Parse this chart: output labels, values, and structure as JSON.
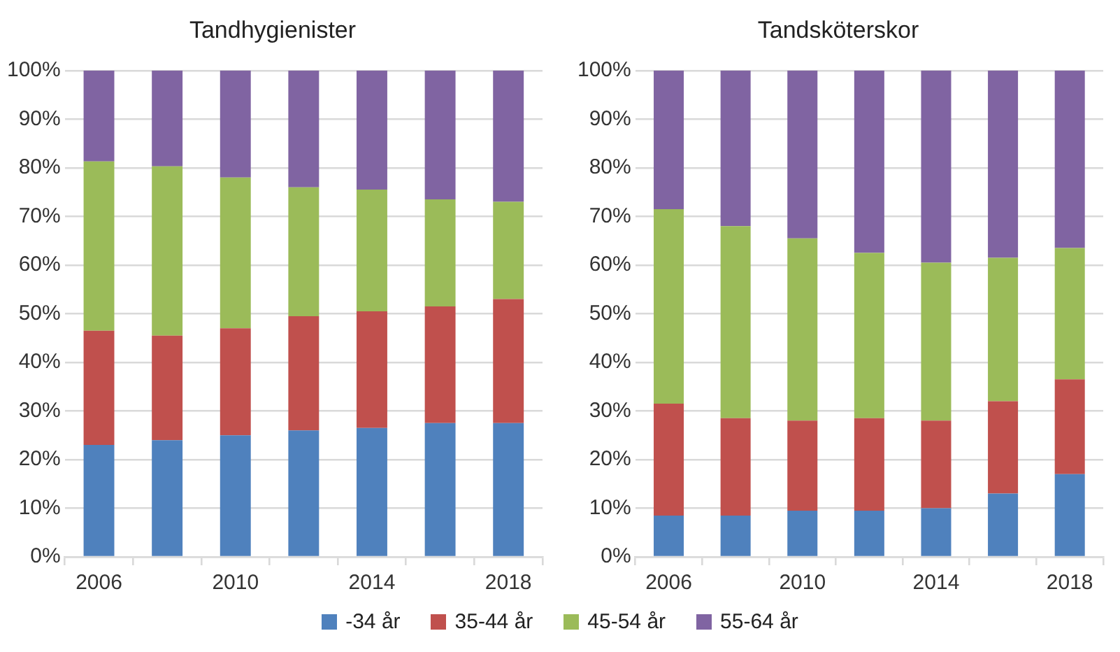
{
  "chart_data": [
    {
      "type": "bar",
      "title": "Tandhygienister",
      "stacked": true,
      "categories": [
        "2006",
        null,
        "2010",
        null,
        "2014",
        null,
        "2018"
      ],
      "ylim": [
        0,
        100
      ],
      "yticks": [
        {
          "value": 0,
          "label": "0%"
        },
        {
          "value": 10,
          "label": "10%"
        },
        {
          "value": 20,
          "label": "20%"
        },
        {
          "value": 30,
          "label": "30%"
        },
        {
          "value": 40,
          "label": "40%"
        },
        {
          "value": 50,
          "label": "50%"
        },
        {
          "value": 60,
          "label": "60%"
        },
        {
          "value": 70,
          "label": "70%"
        },
        {
          "value": 80,
          "label": "80%"
        },
        {
          "value": 90,
          "label": "90%"
        },
        {
          "value": 100,
          "label": "100%"
        }
      ],
      "grid": "y",
      "legend": "bottom",
      "series": [
        {
          "name": "-34 år",
          "color": "#4f81bd",
          "values": [
            23,
            24,
            25,
            26,
            26.5,
            27.5,
            27.5
          ]
        },
        {
          "name": "35-44 år",
          "color": "#c0504d",
          "values": [
            23.5,
            21.5,
            22,
            23.5,
            24,
            24,
            25.5
          ]
        },
        {
          "name": "45-54 år",
          "color": "#9bbb59",
          "values": [
            34.8,
            34.8,
            31,
            26.5,
            25,
            22,
            20
          ]
        },
        {
          "name": "55-64 år",
          "color": "#8064a2",
          "values": [
            18.7,
            19.7,
            22,
            24,
            24.5,
            26.5,
            27
          ]
        }
      ]
    },
    {
      "type": "bar",
      "title": "Tandsköterskor",
      "stacked": true,
      "categories": [
        "2006",
        null,
        "2010",
        null,
        "2014",
        null,
        "2018"
      ],
      "ylim": [
        0,
        100
      ],
      "yticks": [
        {
          "value": 0,
          "label": "0%"
        },
        {
          "value": 10,
          "label": "10%"
        },
        {
          "value": 20,
          "label": "20%"
        },
        {
          "value": 30,
          "label": "30%"
        },
        {
          "value": 40,
          "label": "40%"
        },
        {
          "value": 50,
          "label": "50%"
        },
        {
          "value": 60,
          "label": "60%"
        },
        {
          "value": 70,
          "label": "70%"
        },
        {
          "value": 80,
          "label": "80%"
        },
        {
          "value": 90,
          "label": "90%"
        },
        {
          "value": 100,
          "label": "100%"
        }
      ],
      "grid": "y",
      "series": [
        {
          "color": "#4f81bd",
          "values": [
            8.5,
            8.5,
            9.5,
            9.5,
            10,
            13,
            17
          ]
        },
        {
          "color": "#c0504d",
          "values": [
            23,
            20,
            18.5,
            19,
            18,
            19,
            19.5
          ]
        },
        {
          "color": "#9bbb59",
          "values": [
            40,
            39.5,
            37.5,
            34,
            32.5,
            29.5,
            27
          ]
        },
        {
          "color": "#8064a2",
          "values": [
            28.5,
            32,
            34.5,
            37.5,
            39.5,
            38.5,
            36.5
          ]
        }
      ]
    }
  ]
}
